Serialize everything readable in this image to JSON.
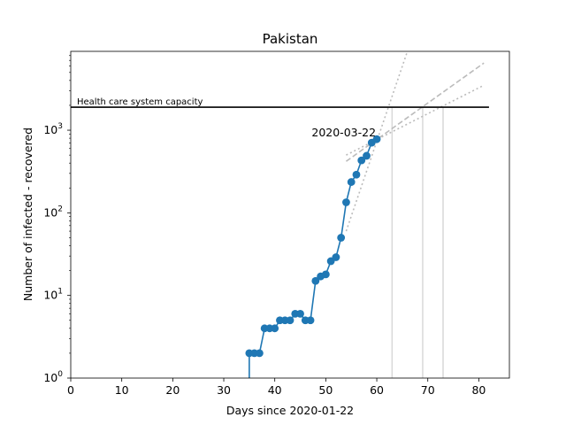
{
  "chart_data": {
    "type": "line",
    "title": "Pakistan",
    "xlabel": "Days since 2020-01-22",
    "ylabel": "Number of infected - recovered",
    "yscale": "log",
    "xlim": [
      0,
      86
    ],
    "ylim": [
      1,
      9000
    ],
    "xticks": [
      0,
      10,
      20,
      30,
      40,
      50,
      60,
      70,
      80
    ],
    "yticks": [
      {
        "value": 1,
        "base": "10",
        "exp": "0"
      },
      {
        "value": 10,
        "base": "10",
        "exp": "1"
      },
      {
        "value": 100,
        "base": "10",
        "exp": "2"
      },
      {
        "value": 1000,
        "base": "10",
        "exp": "3"
      }
    ],
    "grid": false,
    "series": [
      {
        "x": [
          35,
          36,
          37,
          38,
          39,
          40,
          41,
          42,
          43,
          44,
          45,
          46,
          47,
          48,
          49,
          50,
          51,
          52,
          53,
          54,
          55,
          56,
          57,
          58,
          59,
          60
        ],
        "y": [
          2,
          2,
          2,
          4,
          4,
          4,
          5,
          5,
          5,
          6,
          6,
          5,
          5,
          15,
          17,
          18,
          26,
          29,
          50,
          134,
          236,
          290,
          431,
          490,
          706,
          779
        ],
        "color": "#1f77b4"
      }
    ],
    "capacity": {
      "label": "Health care system capacity",
      "value": 1900,
      "x_start": 0,
      "x_end": 82
    },
    "annotations": [
      {
        "text": "2020-03-22",
        "x": 60,
        "y": 779
      }
    ],
    "fit_lines": [
      {
        "style": "dashed",
        "x": [
          54,
          81
        ],
        "y": [
          420,
          6500
        ]
      },
      {
        "style": "dotted",
        "x": [
          54,
          81
        ],
        "y": [
          500,
          3500
        ]
      },
      {
        "style": "dotted",
        "x": [
          54,
          66
        ],
        "y": [
          60,
          9000
        ]
      }
    ],
    "vlines": [
      63,
      69,
      73
    ],
    "colors": {
      "series": "#1f77b4",
      "fit": "#bbbbbb",
      "vline": "#d8d8d8",
      "capacity": "#000000"
    }
  }
}
